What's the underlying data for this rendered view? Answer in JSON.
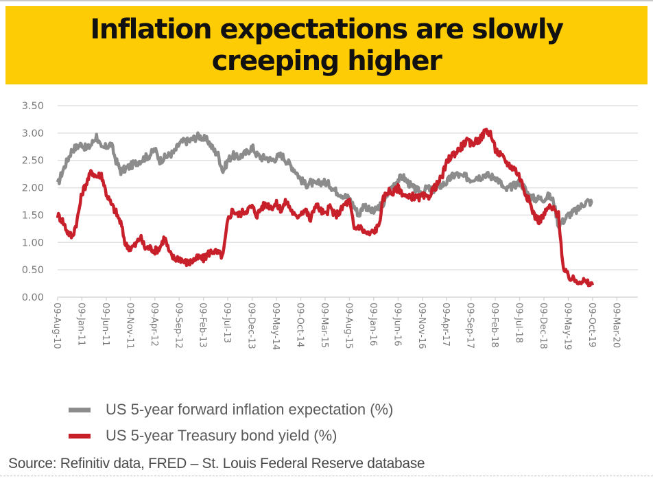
{
  "title": "Inflation expectations are slowly creeping higher",
  "legend": [
    {
      "label": "US 5-year forward inflation expectation (%)",
      "color": "#8c8c8c"
    },
    {
      "label": "US 5-year Treasury bond yield (%)",
      "color": "#c8202a"
    }
  ],
  "source": "Source: Refinitiv data, FRED – St. Louis Federal Reserve database",
  "chart_data": {
    "type": "line",
    "title": "Inflation expectations are slowly creeping higher",
    "xlabel": "",
    "ylabel": "",
    "ylim": [
      0,
      3.5
    ],
    "yticks": [
      "0.00",
      "0.50",
      "1.00",
      "1.50",
      "2.00",
      "2.50",
      "3.00",
      "3.50"
    ],
    "xticks": [
      "09-Aug-10",
      "09-Jan-11",
      "09-Jun-11",
      "09-Nov-11",
      "09-Apr-12",
      "09-Sep-12",
      "09-Feb-13",
      "09-Jul-13",
      "09-Dec-13",
      "09-May-14",
      "09-Oct-14",
      "09-Mar-15",
      "09-Aug-15",
      "09-Jan-16",
      "09-Jun-16",
      "09-Nov-16",
      "09-Apr-17",
      "09-Sep-17",
      "09-Feb-18",
      "09-Jul-18",
      "09-Dec-18",
      "09-May-19",
      "09-Oct-19",
      "09-Mar-20"
    ],
    "grid": true,
    "legend_position": "bottom-left",
    "x_start": "Aug-2010",
    "x_step": "1 month",
    "series": [
      {
        "name": "US 5-year forward inflation expectation (%)",
        "color": "#8c8c8c",
        "values": [
          2.05,
          2.3,
          2.5,
          2.7,
          2.75,
          2.8,
          2.7,
          2.8,
          2.95,
          2.7,
          2.75,
          2.8,
          2.5,
          2.3,
          2.35,
          2.4,
          2.45,
          2.5,
          2.55,
          2.6,
          2.7,
          2.5,
          2.55,
          2.6,
          2.65,
          2.8,
          2.85,
          2.85,
          2.9,
          2.95,
          2.9,
          2.85,
          2.7,
          2.6,
          2.3,
          2.5,
          2.6,
          2.55,
          2.6,
          2.65,
          2.75,
          2.6,
          2.55,
          2.55,
          2.5,
          2.55,
          2.6,
          2.5,
          2.4,
          2.3,
          2.15,
          2.05,
          2.1,
          2.05,
          2.1,
          2.1,
          2.05,
          1.95,
          1.9,
          1.85,
          1.8,
          1.65,
          1.5,
          1.7,
          1.6,
          1.55,
          1.65,
          1.7,
          1.9,
          2.05,
          2.15,
          2.2,
          2.1,
          2.0,
          1.95,
          1.9,
          2.0,
          1.95,
          2.0,
          2.05,
          2.1,
          2.2,
          2.25,
          2.2,
          2.2,
          2.15,
          2.2,
          2.2,
          2.25,
          2.2,
          2.2,
          2.1,
          1.95,
          2.0,
          2.05,
          2.1,
          2.0,
          1.85,
          1.8,
          1.8,
          1.8,
          1.85,
          1.75,
          1.3,
          1.4,
          1.5,
          1.55,
          1.6,
          1.7,
          1.75,
          1.72
        ]
      },
      {
        "name": "US 5-year Treasury bond yield (%)",
        "color": "#c8202a",
        "values": [
          1.5,
          1.4,
          1.2,
          1.1,
          1.4,
          1.9,
          2.1,
          2.3,
          2.2,
          2.25,
          1.9,
          1.7,
          1.55,
          1.35,
          0.95,
          0.9,
          0.95,
          1.1,
          0.9,
          0.9,
          0.85,
          0.9,
          1.1,
          0.8,
          0.7,
          0.72,
          0.65,
          0.62,
          0.68,
          0.72,
          0.7,
          0.8,
          0.85,
          0.8,
          0.75,
          1.4,
          1.6,
          1.5,
          1.55,
          1.6,
          1.65,
          1.5,
          1.65,
          1.7,
          1.65,
          1.7,
          1.6,
          1.75,
          1.6,
          1.45,
          1.55,
          1.6,
          1.4,
          1.7,
          1.6,
          1.5,
          1.65,
          1.5,
          1.55,
          1.7,
          1.75,
          1.25,
          1.3,
          1.2,
          1.15,
          1.2,
          1.3,
          1.8,
          1.95,
          1.9,
          2.0,
          1.9,
          1.8,
          1.85,
          1.8,
          1.85,
          1.8,
          1.95,
          2.05,
          2.2,
          2.45,
          2.6,
          2.65,
          2.75,
          2.85,
          2.8,
          2.85,
          2.9,
          3.05,
          3.0,
          2.7,
          2.6,
          2.5,
          2.4,
          2.35,
          2.2,
          1.95,
          1.75,
          1.5,
          1.4,
          1.5,
          1.65,
          1.6,
          1.5,
          0.5,
          0.38,
          0.32,
          0.3,
          0.3,
          0.25,
          0.22
        ]
      }
    ]
  }
}
